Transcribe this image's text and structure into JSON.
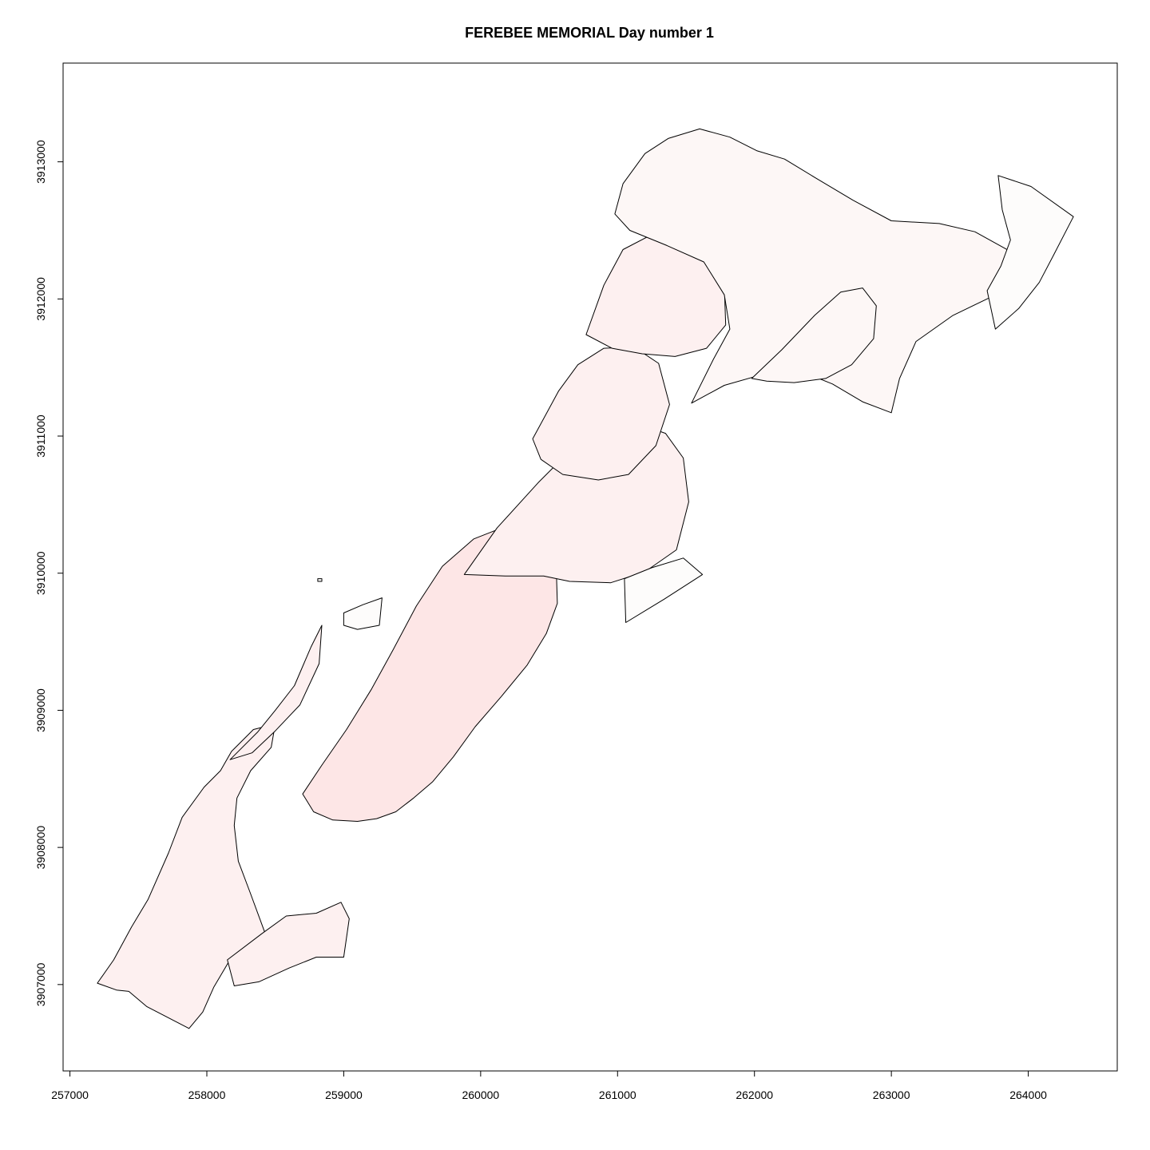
{
  "title": "FEREBEE MEMORIAL   Day number 1",
  "chart_data": {
    "type": "map",
    "title": "FEREBEE MEMORIAL   Day number 1",
    "xlabel": "",
    "ylabel": "",
    "xlim": [
      256950,
      264650
    ],
    "ylim": [
      3906370,
      3913720
    ],
    "x_ticks": [
      "257000",
      "258000",
      "259000",
      "260000",
      "261000",
      "262000",
      "263000",
      "264000"
    ],
    "y_ticks": [
      "3907000",
      "3908000",
      "3909000",
      "3910000",
      "3911000",
      "3912000",
      "3913000"
    ],
    "grid": false,
    "colors": {
      "darkest_fill": "#fde6e6",
      "mid_fill": "#fdf0f0",
      "light_fill": "#fdf7f6",
      "lightest_fill": "#fdfcfb",
      "outline": "#000000"
    },
    "polygons": [
      {
        "fill": "#fdf0f0",
        "points": [
          [
            257200,
            3907010
          ],
          [
            257320,
            3907180
          ],
          [
            257450,
            3907420
          ],
          [
            257570,
            3907620
          ],
          [
            257720,
            3907960
          ],
          [
            257820,
            3908220
          ],
          [
            257980,
            3908440
          ],
          [
            258100,
            3908560
          ],
          [
            258180,
            3908700
          ],
          [
            258340,
            3908860
          ],
          [
            258500,
            3908900
          ],
          [
            258470,
            3908730
          ],
          [
            258320,
            3908560
          ],
          [
            258220,
            3908360
          ],
          [
            258200,
            3908160
          ],
          [
            258230,
            3907900
          ],
          [
            258320,
            3907660
          ],
          [
            258420,
            3907390
          ],
          [
            258440,
            3907150
          ],
          [
            258180,
            3907200
          ],
          [
            258050,
            3906980
          ],
          [
            257970,
            3906800
          ],
          [
            257870,
            3906680
          ],
          [
            257560,
            3906840
          ],
          [
            257430,
            3906950
          ],
          [
            257340,
            3906960
          ]
        ]
      },
      {
        "fill": "#fdf0f0",
        "points": [
          [
            258170,
            3908640
          ],
          [
            258370,
            3908840
          ],
          [
            258500,
            3909000
          ],
          [
            258640,
            3909180
          ],
          [
            258760,
            3909460
          ],
          [
            258840,
            3909620
          ],
          [
            258820,
            3909340
          ],
          [
            258680,
            3909040
          ],
          [
            258500,
            3908850
          ],
          [
            258330,
            3908690
          ]
        ]
      },
      {
        "fill": "#fdf0f0",
        "points": [
          [
            258150,
            3907180
          ],
          [
            258400,
            3907370
          ],
          [
            258580,
            3907500
          ],
          [
            258800,
            3907520
          ],
          [
            258980,
            3907600
          ],
          [
            259040,
            3907480
          ],
          [
            259000,
            3907200
          ],
          [
            258800,
            3907200
          ],
          [
            258600,
            3907120
          ],
          [
            258380,
            3907020
          ],
          [
            258200,
            3906990
          ]
        ]
      },
      {
        "fill": "#fde6e6",
        "points": [
          [
            258700,
            3908390
          ],
          [
            258840,
            3908600
          ],
          [
            259020,
            3908860
          ],
          [
            259200,
            3909150
          ],
          [
            259360,
            3909440
          ],
          [
            259530,
            3909760
          ],
          [
            259720,
            3910050
          ],
          [
            259950,
            3910250
          ],
          [
            260280,
            3910380
          ],
          [
            260440,
            3910320
          ],
          [
            260550,
            3910120
          ],
          [
            260560,
            3909780
          ],
          [
            260480,
            3909560
          ],
          [
            260340,
            3909330
          ],
          [
            260150,
            3909100
          ],
          [
            259960,
            3908880
          ],
          [
            259800,
            3908660
          ],
          [
            259650,
            3908480
          ],
          [
            259510,
            3908360
          ],
          [
            259380,
            3908260
          ],
          [
            259240,
            3908210
          ],
          [
            259100,
            3908190
          ],
          [
            258920,
            3908200
          ],
          [
            258780,
            3908260
          ]
        ]
      },
      {
        "fill": "#fdf0f0",
        "points": [
          [
            259880,
            3909990
          ],
          [
            260120,
            3910330
          ],
          [
            260420,
            3910660
          ],
          [
            260620,
            3910860
          ],
          [
            260850,
            3910960
          ],
          [
            261000,
            3911060
          ],
          [
            261180,
            3911080
          ],
          [
            261350,
            3911020
          ],
          [
            261480,
            3910840
          ],
          [
            261520,
            3910520
          ],
          [
            261430,
            3910170
          ],
          [
            261200,
            3910010
          ],
          [
            260950,
            3909930
          ],
          [
            260650,
            3909940
          ],
          [
            260460,
            3909980
          ],
          [
            260180,
            3909980
          ]
        ]
      },
      {
        "fill": "#fdf0f0",
        "points": [
          [
            260380,
            3910980
          ],
          [
            260570,
            3911330
          ],
          [
            260710,
            3911520
          ],
          [
            260900,
            3911640
          ],
          [
            261120,
            3911650
          ],
          [
            261300,
            3911530
          ],
          [
            261380,
            3911230
          ],
          [
            261280,
            3910930
          ],
          [
            261080,
            3910720
          ],
          [
            260860,
            3910680
          ],
          [
            260600,
            3910720
          ],
          [
            260440,
            3910830
          ]
        ]
      },
      {
        "fill": "#fdf0f0",
        "points": [
          [
            260770,
            3911740
          ],
          [
            260900,
            3912100
          ],
          [
            261040,
            3912360
          ],
          [
            261290,
            3912490
          ],
          [
            261530,
            3912500
          ],
          [
            261700,
            3912330
          ],
          [
            261780,
            3912090
          ],
          [
            261790,
            3911810
          ],
          [
            261650,
            3911640
          ],
          [
            261420,
            3911580
          ],
          [
            261180,
            3911600
          ],
          [
            260960,
            3911640
          ]
        ]
      },
      {
        "fill": "#fdf7f6",
        "points": [
          [
            261540,
            3911240
          ],
          [
            261780,
            3911370
          ],
          [
            262060,
            3911450
          ],
          [
            262320,
            3911480
          ],
          [
            262570,
            3911380
          ],
          [
            262790,
            3911250
          ],
          [
            263000,
            3911170
          ],
          [
            263060,
            3911420
          ],
          [
            263180,
            3911690
          ],
          [
            263450,
            3911880
          ],
          [
            263740,
            3912020
          ],
          [
            263950,
            3912190
          ],
          [
            263900,
            3912330
          ],
          [
            263610,
            3912490
          ],
          [
            263350,
            3912550
          ],
          [
            263000,
            3912570
          ],
          [
            262720,
            3912720
          ],
          [
            262450,
            3912880
          ],
          [
            262220,
            3913020
          ],
          [
            262020,
            3913080
          ],
          [
            261820,
            3913180
          ],
          [
            261600,
            3913240
          ],
          [
            261370,
            3913170
          ],
          [
            261200,
            3913060
          ],
          [
            261040,
            3912840
          ],
          [
            260980,
            3912620
          ],
          [
            261090,
            3912500
          ],
          [
            261360,
            3912390
          ],
          [
            261630,
            3912270
          ],
          [
            261780,
            3912030
          ],
          [
            261820,
            3911780
          ],
          [
            261700,
            3911560
          ]
        ]
      },
      {
        "fill": "#fdf7f6",
        "points": [
          [
            261980,
            3911420
          ],
          [
            262200,
            3911630
          ],
          [
            262440,
            3911880
          ],
          [
            262630,
            3912050
          ],
          [
            262790,
            3912080
          ],
          [
            262890,
            3911950
          ],
          [
            262870,
            3911710
          ],
          [
            262710,
            3911520
          ],
          [
            262520,
            3911420
          ],
          [
            262290,
            3911390
          ],
          [
            262090,
            3911400
          ]
        ]
      },
      {
        "fill": "#fdfcfb",
        "points": [
          [
            263760,
            3911780
          ],
          [
            263930,
            3911930
          ],
          [
            264080,
            3912120
          ],
          [
            264180,
            3912310
          ],
          [
            264330,
            3912600
          ],
          [
            264020,
            3912820
          ],
          [
            263780,
            3912900
          ],
          [
            263810,
            3912650
          ],
          [
            263870,
            3912430
          ],
          [
            263800,
            3912240
          ],
          [
            263700,
            3912060
          ]
        ]
      },
      {
        "fill": "#fdfcfb",
        "points": [
          [
            261060,
            3909640
          ],
          [
            261340,
            3909810
          ],
          [
            261620,
            3909990
          ],
          [
            261480,
            3910110
          ],
          [
            261250,
            3910040
          ],
          [
            261050,
            3909960
          ]
        ]
      },
      {
        "fill": "#fdfcfb",
        "points": [
          [
            259000,
            3909710
          ],
          [
            259140,
            3909770
          ],
          [
            259280,
            3909820
          ],
          [
            259260,
            3909620
          ],
          [
            259100,
            3909590
          ],
          [
            259000,
            3909620
          ]
        ]
      },
      {
        "fill": "#fdfcfb",
        "points": [
          [
            258810,
            3909940
          ],
          [
            258840,
            3909940
          ],
          [
            258840,
            3909960
          ],
          [
            258810,
            3909960
          ]
        ]
      }
    ]
  }
}
